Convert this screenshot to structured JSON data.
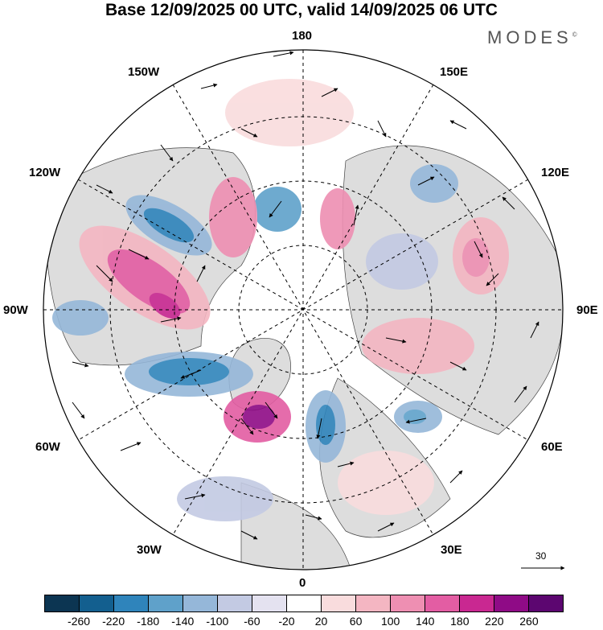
{
  "title": "Base 12/09/2025 00 UTC, valid 14/09/2025 06 UTC",
  "brand": "MODES",
  "brand_mark": "©",
  "longitude_labels": {
    "top": "180",
    "top_left": "150W",
    "top_right": "150E",
    "upper_left": "120W",
    "upper_right": "120E",
    "left": "90W",
    "right": "90E",
    "lower_left": "60W",
    "lower_right": "60E",
    "bottom_left": "30W",
    "bottom_right": "30E",
    "bottom": "0"
  },
  "reference_vector": {
    "value": "30"
  },
  "legend": {
    "ticks": [
      "-260",
      "-220",
      "-180",
      "-140",
      "-100",
      "-60",
      "-20",
      "20",
      "60",
      "100",
      "140",
      "180",
      "220",
      "260"
    ],
    "colors": [
      "#0c3552",
      "#135f8f",
      "#2f84bb",
      "#5fa1ca",
      "#95b7d9",
      "#c3cae3",
      "#e4e2f0",
      "#ffffff",
      "#f9dcdd",
      "#f4b6c2",
      "#ee8fb2",
      "#e35da3",
      "#c92891",
      "#8f0b86",
      "#5c0670"
    ]
  },
  "colors": {
    "land": "#dddddd",
    "ocean": "#ffffff",
    "positive": "#e35da3",
    "negative": "#2f84bb"
  }
}
